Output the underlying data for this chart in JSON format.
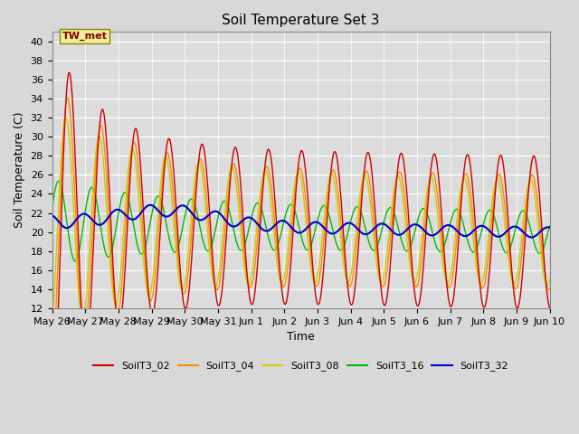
{
  "title": "Soil Temperature Set 3",
  "xlabel": "Time",
  "ylabel": "Soil Temperature (C)",
  "ylim": [
    12,
    41
  ],
  "series_colors": {
    "SoilT3_02": "#cc0000",
    "SoilT3_04": "#ff8800",
    "SoilT3_08": "#cccc00",
    "SoilT3_16": "#00bb00",
    "SoilT3_32": "#0000cc"
  },
  "legend_labels": [
    "SoilT3_02",
    "SoilT3_04",
    "SoilT3_08",
    "SoilT3_16",
    "SoilT3_32"
  ],
  "legend_colors": [
    "#cc0000",
    "#ff8800",
    "#cccc00",
    "#00bb00",
    "#0000cc"
  ],
  "annotation_text": "TW_met",
  "bg_color": "#d8d8d8",
  "plot_bg_color": "#dcdcdc",
  "title_fontsize": 11,
  "axis_fontsize": 9,
  "tick_fontsize": 8
}
